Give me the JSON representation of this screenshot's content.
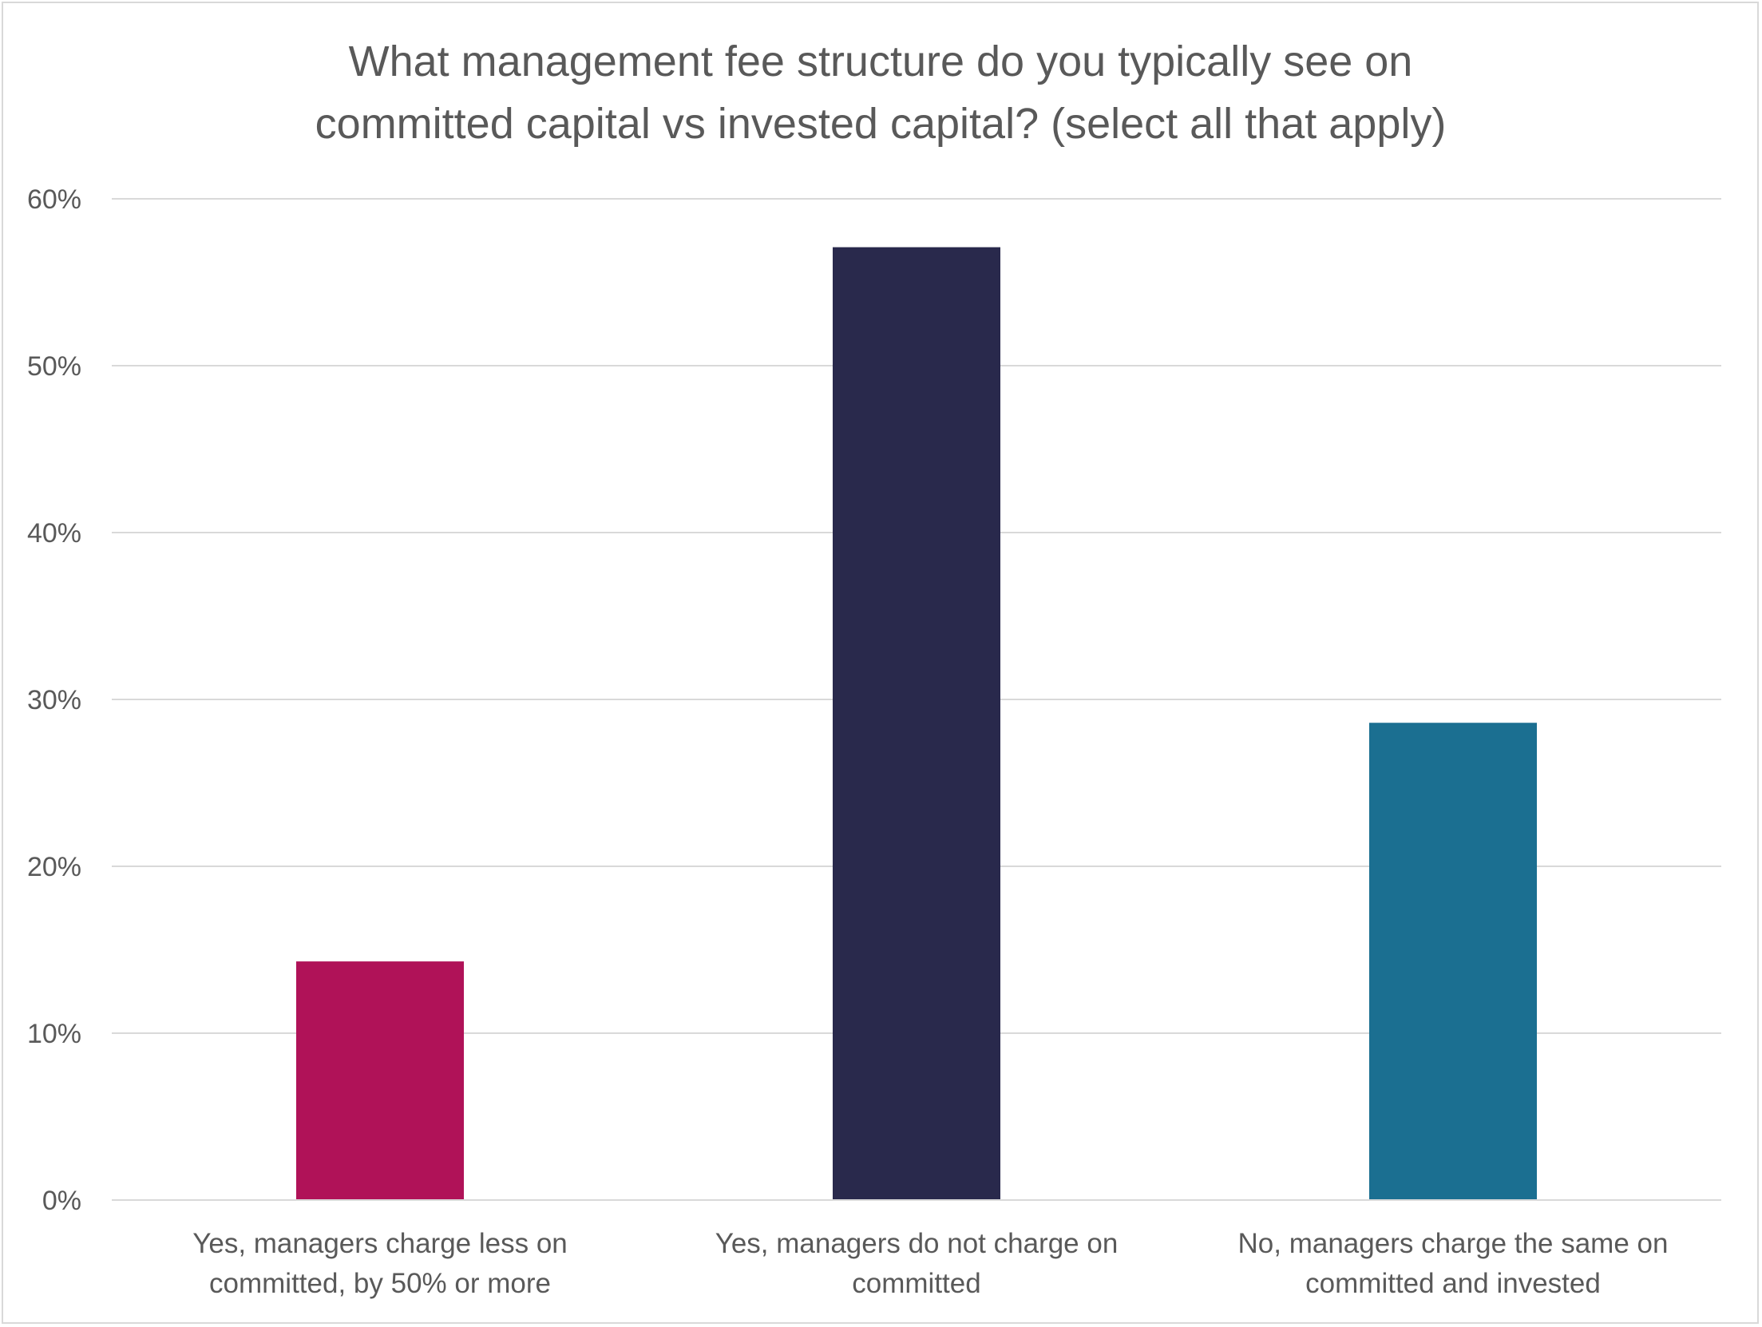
{
  "chart_data": {
    "type": "bar",
    "title": [
      "What management fee structure do you typically see on",
      "committed capital vs invested capital? (select all that apply)"
    ],
    "xlabel": "",
    "ylabel": "",
    "ylim": [
      0,
      60
    ],
    "yticks": [
      0,
      10,
      20,
      30,
      40,
      50,
      60
    ],
    "ytick_labels": [
      "0%",
      "10%",
      "20%",
      "30%",
      "40%",
      "50%",
      "60%"
    ],
    "grid": true,
    "legend": "none",
    "categories": [
      [
        "Yes, managers charge less on",
        "committed, by 50% or more"
      ],
      [
        "Yes, managers do not charge on",
        "committed"
      ],
      [
        "No, managers charge the same on",
        "committed and invested"
      ]
    ],
    "values": [
      14.3,
      57.1,
      28.6
    ],
    "colors": [
      "#b01258",
      "#29294c",
      "#1b6f91"
    ]
  }
}
